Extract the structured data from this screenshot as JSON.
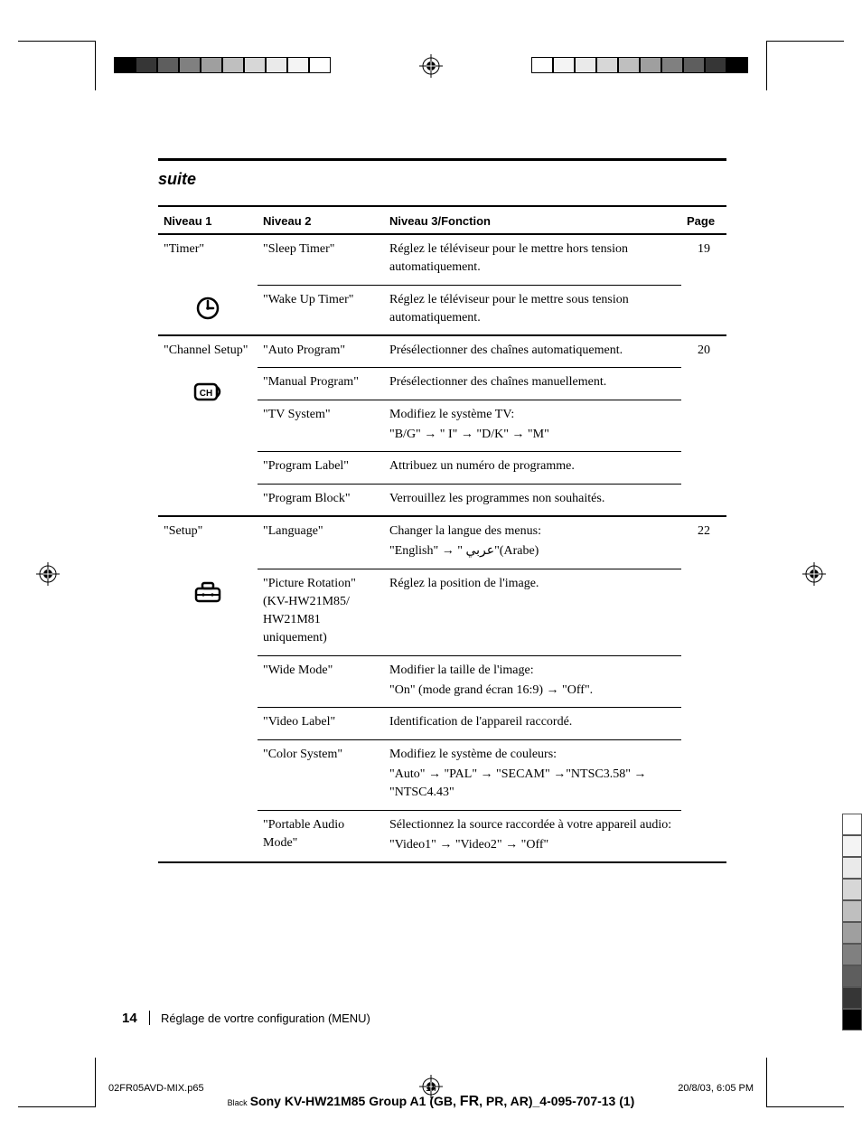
{
  "heading_suite": "suite",
  "table": {
    "headers": {
      "c1": "Niveau 1",
      "c2": "Niveau 2",
      "c3": "Niveau 3/Fonction",
      "c4": "Page"
    },
    "sections": [
      {
        "level1": "\"Timer\"",
        "icon": "clock",
        "page": "19",
        "rows": [
          {
            "c2": "\"Sleep Timer\"",
            "c3": "Réglez le téléviseur pour le mettre hors tension automatiquement."
          },
          {
            "c2": "\"Wake Up Timer\"",
            "c3": "Réglez le téléviseur pour le mettre sous tension automatiquement."
          }
        ]
      },
      {
        "level1": "\"Channel Setup\"",
        "icon": "channel",
        "page": "20",
        "rows": [
          {
            "c2": "\"Auto Program\"",
            "c3": "Présélectionner des chaînes automatiquement."
          },
          {
            "c2": "\"Manual Program\"",
            "c3": "Présélectionner des chaînes manuellement."
          },
          {
            "c2": "\"TV System\"",
            "c3": "Modifiez le système TV:\n\"B/G\" → \" I\" → \"D/K\" → \"M\""
          },
          {
            "c2": "\"Program Label\"",
            "c3": "Attribuez un numéro de programme."
          },
          {
            "c2": "\"Program Block\"",
            "c3": "Verrouillez les programmes non souhaités."
          }
        ]
      },
      {
        "level1": "\"Setup\"",
        "icon": "toolbox",
        "page": "22",
        "rows": [
          {
            "c2": "\"Language\"",
            "c3": "Changer la langue des menus:\n\"English\" → \" عربي\"(Arabe)"
          },
          {
            "c2": "\"Picture Rotation\" (KV-HW21M85/HW21M81 uniquement)",
            "c3": "Réglez la position de l'image."
          },
          {
            "c2": "\"Wide Mode\"",
            "c3": "Modifier la taille de l'image:\n\"On\" (mode grand écran 16:9) → \"Off\"."
          },
          {
            "c2": "\"Video Label\"",
            "c3": "Identification de l'appareil raccordé."
          },
          {
            "c2": "\"Color System\"",
            "c3": "Modifiez le système de couleurs:\n\"Auto\" → \"PAL\" → \"SECAM\" →\"NTSC3.58\" → \"NTSC4.43\""
          },
          {
            "c2": "\"Portable Audio Mode\"",
            "c3": "Sélectionnez la source raccordée à votre appareil audio:\n\"Video1\" → \"Video2\" → \"Off\""
          }
        ]
      }
    ]
  },
  "footer": {
    "page_no": "14",
    "section": "Réglage de vortre configuration (MENU)"
  },
  "imposition": {
    "file": "02FR05AVD-MIX.p65",
    "page": "14",
    "datetime": "20/8/03, 6:05 PM",
    "color": "Black",
    "doc": "Sony KV-HW21M85 Group A1 (GB, ",
    "lang": "FR",
    "doc_tail": ", PR, AR)_4-095-707-13 (1)"
  },
  "colors": {
    "colorbar_left": [
      "#000000",
      "#363636",
      "#5e5e5e",
      "#808080",
      "#9f9f9f",
      "#bfbfbf",
      "#d7d7d7",
      "#eaeaea",
      "#f4f4f4",
      "#ffffff"
    ],
    "sidebar_right": [
      "#ffffff",
      "#f4f4f4",
      "#eaeaea",
      "#d7d7d7",
      "#bfbfbf",
      "#9f9f9f",
      "#808080",
      "#5e5e5e",
      "#363636",
      "#000000"
    ]
  }
}
